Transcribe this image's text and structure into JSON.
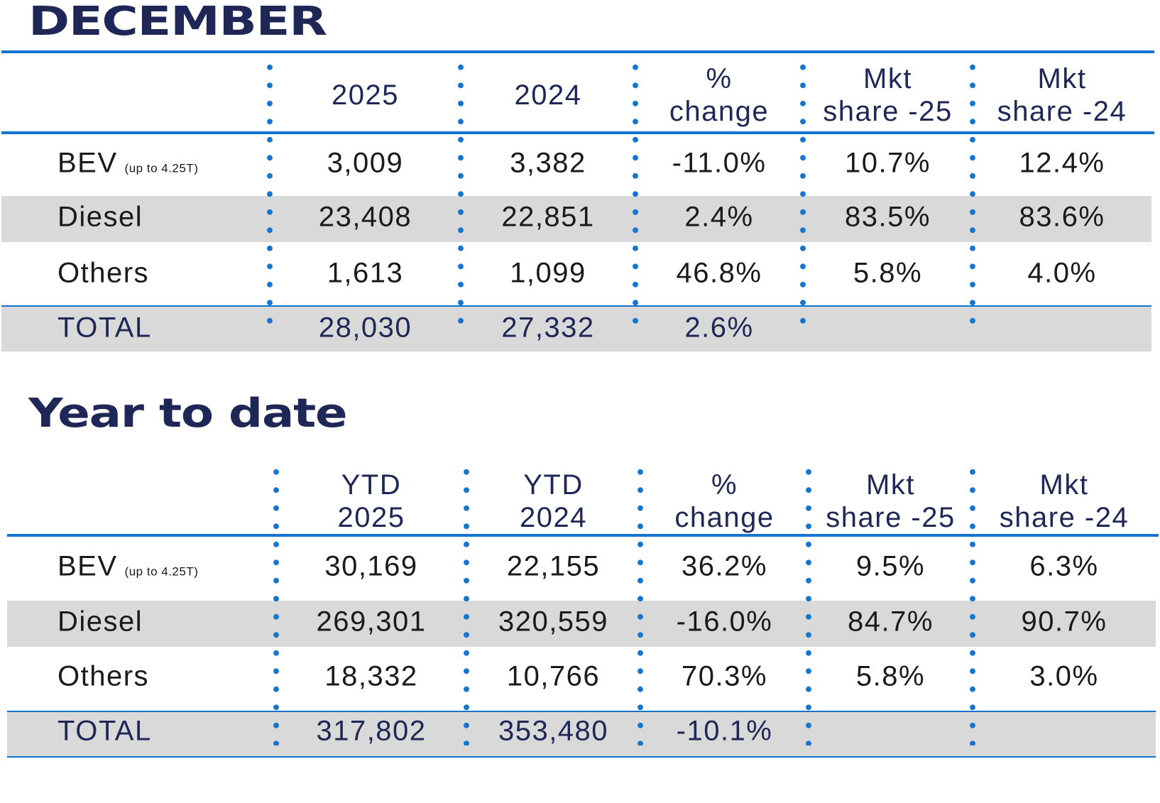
{
  "colors": {
    "navy": "#1e2755",
    "blue": "#1474d0",
    "band": "#d9d9d9"
  },
  "december": {
    "title": "DECEMBER",
    "headers": [
      [
        "2025"
      ],
      [
        "2024"
      ],
      [
        "%",
        "change"
      ],
      [
        "Mkt",
        "share -25"
      ],
      [
        "Mkt",
        "share -24"
      ]
    ],
    "rows": [
      {
        "label": "BEV",
        "note": "(up to 4.25T)",
        "values": [
          "3,009",
          "3,382",
          "-11.0%",
          "10.7%",
          "12.4%"
        ]
      },
      {
        "label": "Diesel",
        "values": [
          "23,408",
          "22,851",
          "2.4%",
          "83.5%",
          "83.6%"
        ]
      },
      {
        "label": "Others",
        "values": [
          "1,613",
          "1,099",
          "46.8%",
          "5.8%",
          "4.0%"
        ]
      },
      {
        "label": "TOTAL",
        "values": [
          "28,030",
          "27,332",
          "2.6%",
          "",
          ""
        ]
      }
    ]
  },
  "ytd": {
    "title": "Year to date",
    "headers": [
      [
        "YTD",
        "2025"
      ],
      [
        "YTD",
        "2024"
      ],
      [
        "%",
        "change"
      ],
      [
        "Mkt",
        "share -25"
      ],
      [
        "Mkt",
        "share -24"
      ]
    ],
    "rows": [
      {
        "label": "BEV",
        "note": "(up to 4.25T)",
        "values": [
          "30,169",
          "22,155",
          "36.2%",
          "9.5%",
          "6.3%"
        ]
      },
      {
        "label": "Diesel",
        "values": [
          "269,301",
          "320,559",
          "-16.0%",
          "84.7%",
          "90.7%"
        ]
      },
      {
        "label": "Others",
        "values": [
          "18,332",
          "10,766",
          "70.3%",
          "5.8%",
          "3.0%"
        ]
      },
      {
        "label": "TOTAL",
        "values": [
          "317,802",
          "353,480",
          "-10.1%",
          "",
          ""
        ]
      }
    ]
  }
}
